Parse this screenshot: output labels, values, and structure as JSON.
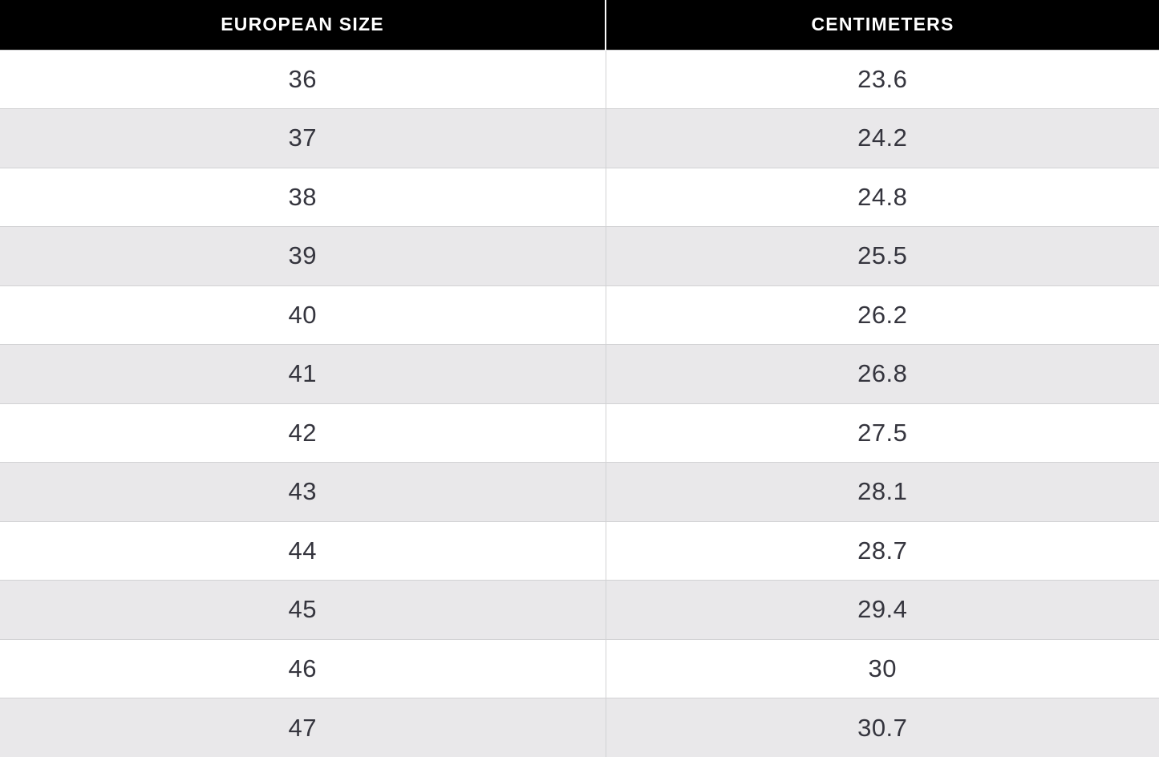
{
  "table": {
    "columns": [
      "EUROPEAN SIZE",
      "CENTIMETERS"
    ],
    "rows": [
      {
        "eu": "36",
        "cm": "23.6"
      },
      {
        "eu": "37",
        "cm": "24.2"
      },
      {
        "eu": "38",
        "cm": "24.8"
      },
      {
        "eu": "39",
        "cm": "25.5"
      },
      {
        "eu": "40",
        "cm": "26.2"
      },
      {
        "eu": "41",
        "cm": "26.8"
      },
      {
        "eu": "42",
        "cm": "27.5"
      },
      {
        "eu": "43",
        "cm": "28.1"
      },
      {
        "eu": "44",
        "cm": "28.7"
      },
      {
        "eu": "45",
        "cm": "29.4"
      },
      {
        "eu": "46",
        "cm": "30"
      },
      {
        "eu": "47",
        "cm": "30.7"
      }
    ],
    "colors": {
      "header_background": "#000000",
      "header_text": "#ffffff",
      "row_background": "#ffffff",
      "row_alt_background": "#e9e8ea",
      "row_border": "#d2d2d4",
      "cell_text": "#35353e"
    }
  }
}
